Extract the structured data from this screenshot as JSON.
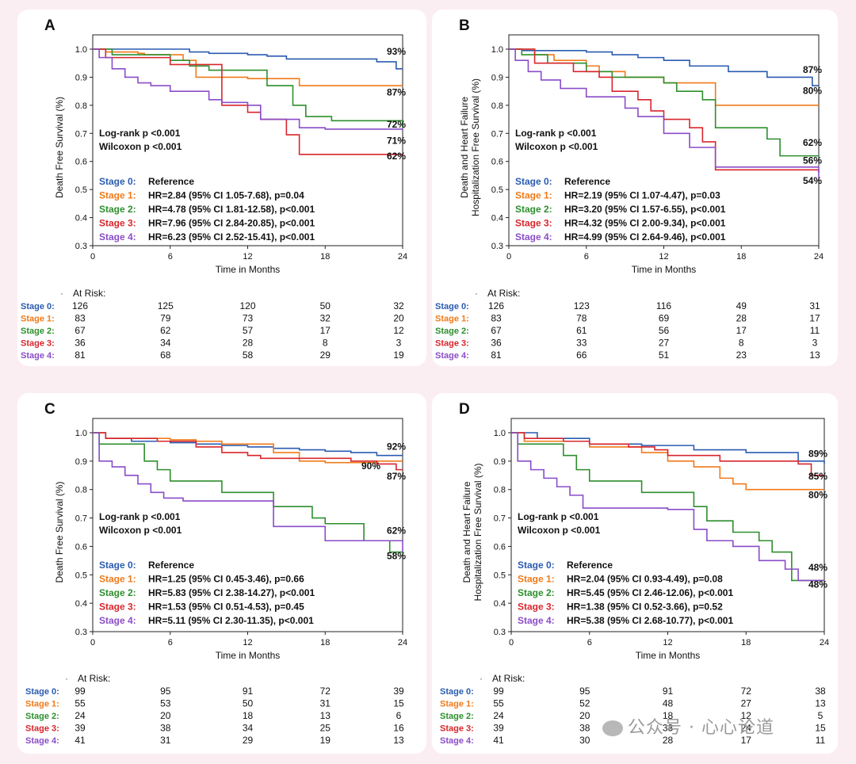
{
  "colors": {
    "stage0": "#2a5bb0",
    "stage1": "#f07a1a",
    "stage2": "#2d8f2d",
    "stage3": "#d8262c",
    "stage4": "#8a4cc8",
    "background": "#fbeef3",
    "panel": "#ffffff"
  },
  "common": {
    "xlabel": "Time in Months",
    "at_risk_label": "At Risk:",
    "stage_labels": [
      "Stage 0:",
      "Stage 1:",
      "Stage 2:",
      "Stage 3:",
      "Stage 4:"
    ],
    "xticks": [
      0,
      6,
      12,
      18,
      24
    ],
    "yticks": [
      "0.3",
      "0.4",
      "0.5",
      "0.6",
      "0.7",
      "0.8",
      "0.9",
      "1.0"
    ]
  },
  "watermark": "公众号 · 心心论道",
  "chart_data": [
    {
      "type": "line",
      "label": "A",
      "ylabel": [
        "Death Free Survival (%)"
      ],
      "xlabel": "Time in Months",
      "xlim": [
        0,
        24
      ],
      "ylim": [
        0.3,
        1.0
      ],
      "tests": [
        "Log-rank  p <0.001",
        "Wilcoxon p <0.001"
      ],
      "hr": [
        "Reference",
        "HR=2.84 (95% CI 1.05-7.68), p=0.04",
        "HR=4.78 (95% CI 1.81-12.58), p<0.001",
        "HR=7.96 (95% CI 2.84-20.85), p<0.001",
        "HR=6.23 (95% CI 2.52-15.41), p<0.001"
      ],
      "end_labels": [
        {
          "text": "93%",
          "y": 0.98,
          "series": 0
        },
        {
          "text": "87%",
          "y": 0.835,
          "series": 1
        },
        {
          "text": "72%",
          "y": 0.72,
          "series": 2
        },
        {
          "text": "71%",
          "y": 0.662,
          "series": 4
        },
        {
          "text": "62%",
          "y": 0.607,
          "series": 3
        }
      ],
      "series": [
        {
          "name": "Stage 0",
          "x": [
            0,
            2.5,
            6,
            7.5,
            9,
            12,
            13.5,
            15,
            22,
            23.5,
            24
          ],
          "y": [
            1.0,
            1.0,
            1.0,
            0.99,
            0.985,
            0.98,
            0.975,
            0.965,
            0.955,
            0.93,
            0.93
          ]
        },
        {
          "name": "Stage 1",
          "x": [
            0,
            1,
            3.5,
            4,
            7,
            8,
            12,
            16,
            24
          ],
          "y": [
            1.0,
            0.99,
            0.985,
            0.98,
            0.96,
            0.9,
            0.895,
            0.87,
            0.87
          ]
        },
        {
          "name": "Stage 2",
          "x": [
            0,
            1.5,
            6,
            7.5,
            9,
            13.5,
            15.5,
            16.5,
            18.5,
            24
          ],
          "y": [
            1.0,
            0.98,
            0.96,
            0.94,
            0.925,
            0.87,
            0.8,
            0.76,
            0.745,
            0.72
          ]
        },
        {
          "name": "Stage 3",
          "x": [
            0,
            1,
            6,
            10,
            12,
            13,
            15,
            16,
            24
          ],
          "y": [
            1.0,
            0.97,
            0.945,
            0.8,
            0.775,
            0.75,
            0.695,
            0.625,
            0.62
          ]
        },
        {
          "name": "Stage 4",
          "x": [
            0,
            0.5,
            1.5,
            2.5,
            3.5,
            4.5,
            6,
            9,
            10,
            12,
            13,
            16,
            18,
            22,
            24
          ],
          "y": [
            1.0,
            0.97,
            0.93,
            0.9,
            0.88,
            0.87,
            0.85,
            0.82,
            0.81,
            0.8,
            0.75,
            0.72,
            0.715,
            0.715,
            0.71
          ]
        }
      ],
      "at_risk": {
        "times": [
          0,
          6,
          12,
          18,
          24
        ],
        "rows": [
          [
            "126",
            "125",
            "120",
            "50",
            "32"
          ],
          [
            "83",
            "79",
            "73",
            "32",
            "20"
          ],
          [
            "67",
            "62",
            "57",
            "17",
            "12"
          ],
          [
            "36",
            "34",
            "28",
            "8",
            "3"
          ],
          [
            "81",
            "68",
            "58",
            "29",
            "19"
          ]
        ]
      }
    },
    {
      "type": "line",
      "label": "B",
      "ylabel": [
        "Death and Heart Failure",
        "Hospitalization Free Survival (%)"
      ],
      "xlabel": "Time in Months",
      "xlim": [
        0,
        24
      ],
      "ylim": [
        0.3,
        1.0
      ],
      "tests": [
        "Log-rank  p <0.001",
        "Wilcoxon p <0.001"
      ],
      "hr": [
        "Reference",
        "HR=2.19 (95% CI 1.07-4.47), p=0.03",
        "HR=3.20 (95% CI 1.57-6.55), p<0.001",
        "HR=4.32 (95% CI 2.00-9.34), p<0.001",
        "HR=4.99 (95% CI 2.64-9.46), p<0.001"
      ],
      "end_labels": [
        {
          "text": "87%",
          "y": 0.915,
          "series": 0
        },
        {
          "text": "80%",
          "y": 0.84,
          "series": 1
        },
        {
          "text": "62%",
          "y": 0.655,
          "series": 2
        },
        {
          "text": "56%",
          "y": 0.592,
          "series": 3
        },
        {
          "text": "54%",
          "y": 0.52,
          "series": 4
        }
      ],
      "series": [
        {
          "name": "Stage 0",
          "x": [
            0,
            1,
            6,
            8,
            10,
            12,
            14,
            17,
            20,
            23.5,
            24
          ],
          "y": [
            1.0,
            0.995,
            0.99,
            0.98,
            0.97,
            0.96,
            0.94,
            0.92,
            0.9,
            0.87,
            0.87
          ]
        },
        {
          "name": "Stage 1",
          "x": [
            0,
            2,
            3.5,
            6,
            7,
            9,
            12,
            16,
            24
          ],
          "y": [
            1.0,
            0.98,
            0.96,
            0.94,
            0.92,
            0.9,
            0.88,
            0.8,
            0.8
          ]
        },
        {
          "name": "Stage 2",
          "x": [
            0,
            1,
            3,
            6,
            8,
            12,
            13,
            15,
            16,
            20,
            21,
            24
          ],
          "y": [
            1.0,
            0.98,
            0.95,
            0.92,
            0.9,
            0.88,
            0.85,
            0.82,
            0.72,
            0.68,
            0.62,
            0.62
          ]
        },
        {
          "name": "Stage 3",
          "x": [
            0,
            2,
            5,
            7,
            8,
            10,
            11,
            12,
            14,
            15,
            16,
            24
          ],
          "y": [
            1.0,
            0.95,
            0.92,
            0.9,
            0.85,
            0.82,
            0.78,
            0.75,
            0.72,
            0.67,
            0.57,
            0.56
          ]
        },
        {
          "name": "Stage 4",
          "x": [
            0,
            0.5,
            1.5,
            2.5,
            4,
            6,
            9,
            10,
            12,
            14,
            16,
            24
          ],
          "y": [
            1.0,
            0.96,
            0.92,
            0.89,
            0.86,
            0.83,
            0.79,
            0.76,
            0.7,
            0.65,
            0.58,
            0.54
          ]
        }
      ],
      "at_risk": {
        "times": [
          0,
          6,
          12,
          18,
          24
        ],
        "rows": [
          [
            "126",
            "123",
            "116",
            "49",
            "31"
          ],
          [
            "83",
            "78",
            "69",
            "28",
            "17"
          ],
          [
            "67",
            "61",
            "56",
            "17",
            "11"
          ],
          [
            "36",
            "33",
            "27",
            "8",
            "3"
          ],
          [
            "81",
            "66",
            "51",
            "23",
            "13"
          ]
        ]
      }
    },
    {
      "type": "line",
      "label": "C",
      "ylabel": [
        "Death Free Survival (%)"
      ],
      "xlabel": "Time in Months",
      "xlim": [
        0,
        24
      ],
      "ylim": [
        0.3,
        1.0
      ],
      "tests": [
        "Log-rank  p <0.001",
        "Wilcoxon p <0.001"
      ],
      "hr": [
        "Reference",
        "HR=1.25 (95% CI 0.45-3.46), p=0.66",
        "HR=5.83 (95% CI 2.38-14.27), p<0.001",
        "HR=1.53 (95% CI 0.51-4.53), p=0.45",
        "HR=5.11 (95% CI 2.30-11.35), p<0.001"
      ],
      "end_labels": [
        {
          "text": "92%",
          "y": 0.94,
          "series": 0
        },
        {
          "text": "90%",
          "y": 0.872,
          "series": 1,
          "left": true
        },
        {
          "text": "87%",
          "y": 0.835,
          "series": 3
        },
        {
          "text": "62%",
          "y": 0.645,
          "series": 2
        },
        {
          "text": "58%",
          "y": 0.555,
          "series": 4
        }
      ],
      "series": [
        {
          "name": "Stage 0",
          "x": [
            0,
            1,
            3,
            6,
            8,
            10,
            12,
            14,
            16,
            18,
            20,
            22,
            24
          ],
          "y": [
            1.0,
            0.98,
            0.97,
            0.965,
            0.96,
            0.955,
            0.95,
            0.945,
            0.94,
            0.935,
            0.93,
            0.92,
            0.92
          ]
        },
        {
          "name": "Stage 1",
          "x": [
            0,
            1,
            6,
            8,
            10,
            14,
            16,
            18,
            22,
            24
          ],
          "y": [
            1.0,
            0.98,
            0.975,
            0.97,
            0.96,
            0.93,
            0.9,
            0.895,
            0.9,
            0.9
          ]
        },
        {
          "name": "Stage 2",
          "x": [
            0,
            0.5,
            4,
            5,
            6,
            10,
            14,
            17,
            18,
            21,
            23,
            24
          ],
          "y": [
            1.0,
            0.96,
            0.9,
            0.87,
            0.83,
            0.79,
            0.74,
            0.7,
            0.68,
            0.62,
            0.58,
            0.58
          ]
        },
        {
          "name": "Stage 3",
          "x": [
            0,
            1,
            5,
            8,
            10,
            12,
            13,
            16,
            18,
            20,
            22,
            23.5,
            24
          ],
          "y": [
            1.0,
            0.98,
            0.97,
            0.95,
            0.93,
            0.92,
            0.91,
            0.91,
            0.91,
            0.9,
            0.89,
            0.87,
            0.87
          ]
        },
        {
          "name": "Stage 4",
          "x": [
            0,
            0.5,
            1.5,
            2.5,
            3.5,
            4.5,
            5.5,
            7,
            11,
            14,
            18,
            24
          ],
          "y": [
            1.0,
            0.9,
            0.88,
            0.85,
            0.82,
            0.79,
            0.77,
            0.76,
            0.76,
            0.67,
            0.62,
            0.58
          ]
        }
      ],
      "at_risk": {
        "times": [
          0,
          6,
          12,
          18,
          24
        ],
        "rows": [
          [
            "99",
            "95",
            "91",
            "72",
            "39"
          ],
          [
            "55",
            "53",
            "50",
            "31",
            "15"
          ],
          [
            "24",
            "20",
            "18",
            "13",
            "6"
          ],
          [
            "39",
            "38",
            "34",
            "25",
            "16"
          ],
          [
            "41",
            "31",
            "29",
            "19",
            "13"
          ]
        ]
      }
    },
    {
      "type": "line",
      "label": "D",
      "ylabel": [
        "Death and Heart Failure",
        "Hospitalization Free Survival (%)"
      ],
      "xlabel": "Time in Months",
      "xlim": [
        0,
        24
      ],
      "ylim": [
        0.3,
        1.0
      ],
      "tests": [
        "Log-rank  p <0.001",
        "Wilcoxon p <0.001"
      ],
      "hr": [
        "Reference",
        "HR=2.04 (95% CI 0.93-4.49), p=0.08",
        "HR=5.45 (95% CI 2.46-12.06), p<0.001",
        "HR=1.38 (95% CI 0.52-3.66), p=0.52",
        "HR=5.38 (95% CI 2.68-10.77), p<0.001"
      ],
      "end_labels": [
        {
          "text": "89%",
          "y": 0.915,
          "series": 0
        },
        {
          "text": "85%",
          "y": 0.835,
          "series": 3
        },
        {
          "text": "80%",
          "y": 0.77,
          "series": 1
        },
        {
          "text": "48%",
          "y": 0.515,
          "series": 2
        },
        {
          "text": "48%",
          "y": 0.455,
          "series": 4
        }
      ],
      "series": [
        {
          "name": "Stage 0",
          "x": [
            0,
            2,
            6,
            10,
            14,
            18,
            22,
            24
          ],
          "y": [
            1.0,
            0.98,
            0.96,
            0.955,
            0.94,
            0.93,
            0.9,
            0.89
          ]
        },
        {
          "name": "Stage 1",
          "x": [
            0,
            1,
            6,
            10,
            12,
            14,
            16,
            17,
            18,
            24
          ],
          "y": [
            1.0,
            0.97,
            0.95,
            0.93,
            0.9,
            0.88,
            0.84,
            0.82,
            0.8,
            0.8
          ]
        },
        {
          "name": "Stage 2",
          "x": [
            0,
            0.5,
            4,
            5,
            6,
            10,
            14,
            15,
            17,
            19,
            20,
            21.5,
            24
          ],
          "y": [
            1.0,
            0.96,
            0.92,
            0.87,
            0.83,
            0.79,
            0.74,
            0.69,
            0.65,
            0.62,
            0.58,
            0.48,
            0.48
          ]
        },
        {
          "name": "Stage 3",
          "x": [
            0,
            1,
            4,
            6,
            9,
            11,
            12,
            16,
            22,
            23,
            24
          ],
          "y": [
            1.0,
            0.98,
            0.97,
            0.96,
            0.95,
            0.94,
            0.92,
            0.9,
            0.89,
            0.85,
            0.85
          ]
        },
        {
          "name": "Stage 4",
          "x": [
            0,
            0.5,
            1.5,
            2.5,
            3.5,
            4.5,
            5.5,
            8,
            12,
            14,
            15,
            17,
            19,
            21,
            22,
            24
          ],
          "y": [
            1.0,
            0.9,
            0.87,
            0.84,
            0.81,
            0.78,
            0.735,
            0.735,
            0.73,
            0.66,
            0.62,
            0.6,
            0.55,
            0.52,
            0.48,
            0.48
          ]
        }
      ],
      "at_risk": {
        "times": [
          0,
          6,
          12,
          18,
          24
        ],
        "rows": [
          [
            "99",
            "95",
            "91",
            "72",
            "38"
          ],
          [
            "55",
            "52",
            "48",
            "27",
            "13"
          ],
          [
            "24",
            "20",
            "18",
            "12",
            "5"
          ],
          [
            "39",
            "38",
            "33",
            "24",
            "15"
          ],
          [
            "41",
            "30",
            "28",
            "17",
            "11"
          ]
        ]
      }
    }
  ]
}
